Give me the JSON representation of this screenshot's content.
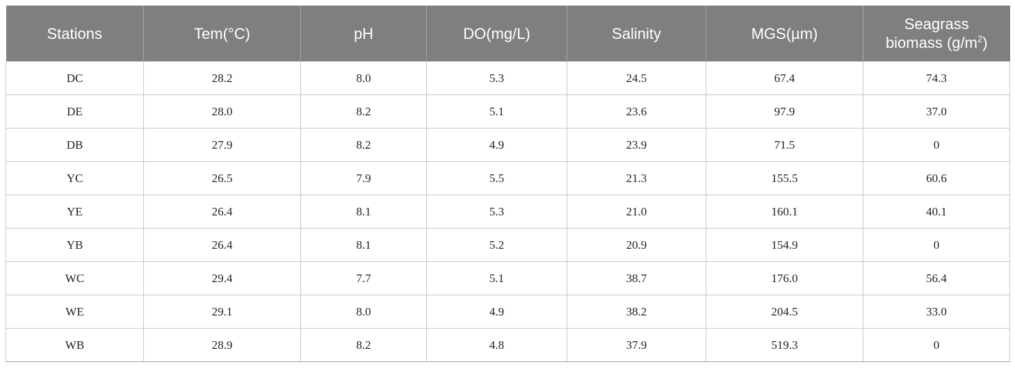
{
  "table": {
    "headers": {
      "stations": "Stations",
      "tem": "Tem(°C)",
      "ph": "pH",
      "do": "DO(mg/L)",
      "salinity": "Salinity",
      "mgs": "MGS(µm)",
      "seagrass_line1": "Seagrass",
      "seagrass_line2": "biomass (g/m",
      "seagrass_sup": "2",
      "seagrass_close": ")"
    },
    "rows": [
      {
        "station": "DC",
        "tem": "28.2",
        "ph": "8.0",
        "do": "5.3",
        "salinity": "24.5",
        "mgs": "67.4",
        "biomass": "74.3"
      },
      {
        "station": "DE",
        "tem": "28.0",
        "ph": "8.2",
        "do": "5.1",
        "salinity": "23.6",
        "mgs": "97.9",
        "biomass": "37.0"
      },
      {
        "station": "DB",
        "tem": "27.9",
        "ph": "8.2",
        "do": "4.9",
        "salinity": "23.9",
        "mgs": "71.5",
        "biomass": "0"
      },
      {
        "station": "YC",
        "tem": "26.5",
        "ph": "7.9",
        "do": "5.5",
        "salinity": "21.3",
        "mgs": "155.5",
        "biomass": "60.6"
      },
      {
        "station": "YE",
        "tem": "26.4",
        "ph": "8.1",
        "do": "5.3",
        "salinity": "21.0",
        "mgs": "160.1",
        "biomass": "40.1"
      },
      {
        "station": "YB",
        "tem": "26.4",
        "ph": "8.1",
        "do": "5.2",
        "salinity": "20.9",
        "mgs": "154.9",
        "biomass": "0"
      },
      {
        "station": "WC",
        "tem": "29.4",
        "ph": "7.7",
        "do": "5.1",
        "salinity": "38.7",
        "mgs": "176.0",
        "biomass": "56.4"
      },
      {
        "station": "WE",
        "tem": "29.1",
        "ph": "8.0",
        "do": "4.9",
        "salinity": "38.2",
        "mgs": "204.5",
        "biomass": "33.0"
      },
      {
        "station": "WB",
        "tem": "28.9",
        "ph": "8.2",
        "do": "4.8",
        "salinity": "37.9",
        "mgs": "519.3",
        "biomass": "0"
      }
    ]
  },
  "colors": {
    "header_bg": "#7f7f7f",
    "header_text": "#ffffff",
    "cell_border": "#c8c8c8"
  }
}
